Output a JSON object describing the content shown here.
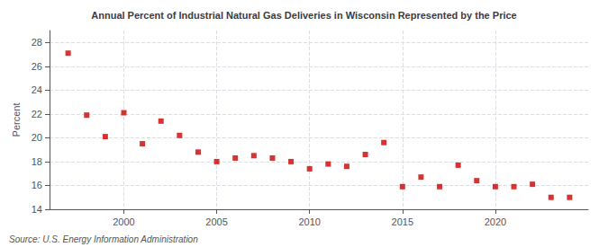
{
  "chart_data": {
    "type": "scatter",
    "title": "Annual Percent of Industrial Natural Gas Deliveries in Wisconsin Represented by the Price",
    "ylabel": "Percent",
    "source": "Source: U.S. Energy Information Administration",
    "x": [
      1997,
      1998,
      1999,
      2000,
      2001,
      2002,
      2003,
      2004,
      2005,
      2006,
      2007,
      2008,
      2009,
      2010,
      2011,
      2012,
      2013,
      2014,
      2015,
      2016,
      2017,
      2018,
      2019,
      2020,
      2021,
      2022,
      2023,
      2024
    ],
    "values": [
      27.1,
      21.9,
      20.1,
      22.1,
      19.5,
      21.4,
      20.2,
      18.8,
      18.0,
      18.3,
      18.5,
      18.3,
      18.0,
      17.4,
      17.8,
      17.6,
      18.6,
      19.6,
      15.9,
      16.7,
      15.9,
      17.7,
      16.4,
      15.9,
      15.9,
      16.1,
      15.0,
      15.0
    ],
    "color": "#cc0000",
    "marker": "square",
    "xlim": [
      1996,
      2025
    ],
    "xticks": [
      2000,
      2005,
      2010,
      2015,
      2020
    ],
    "ylim": [
      14,
      29
    ],
    "yticks": [
      14,
      16,
      18,
      20,
      22,
      24,
      26,
      28
    ],
    "grid": true
  }
}
